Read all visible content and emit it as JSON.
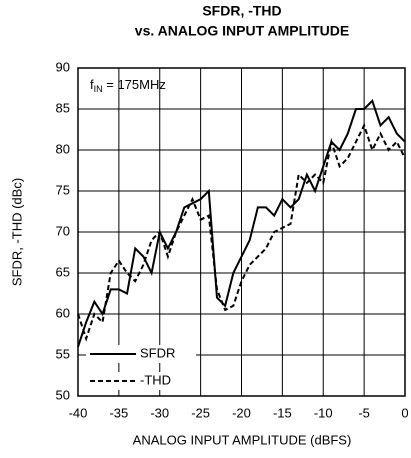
{
  "chart_data": {
    "type": "line",
    "title": [
      "SFDR, -THD",
      "vs. ANALOG INPUT AMPLITUDE"
    ],
    "annotation": {
      "base": "f",
      "subscript": "IN",
      "text": " = 175MHz"
    },
    "x_label": "ANALOG INPUT AMPLITUDE (dBFS)",
    "y_label": "SFDR, -THD (dBc)",
    "x": [
      -40,
      -39,
      -38,
      -37,
      -36,
      -35,
      -34,
      -33,
      -32,
      -31,
      -30,
      -29,
      -28,
      -27,
      -26,
      -25,
      -24,
      -23,
      -22,
      -21,
      -20,
      -19,
      -18,
      -17,
      -16,
      -15,
      -14,
      -13,
      -12,
      -11,
      -10,
      -9,
      -8,
      -7,
      -6,
      -5,
      -4,
      -3,
      -2,
      -1,
      0
    ],
    "series": [
      {
        "name": "SFDR",
        "color": "#000000",
        "dash": "solid",
        "values": [
          56,
          59,
          61.5,
          60,
          63,
          63,
          62.5,
          68,
          67,
          65,
          70,
          68,
          70,
          73,
          73.5,
          74,
          75,
          62,
          61,
          65,
          67,
          69,
          73,
          73,
          72,
          74,
          73,
          74,
          77,
          75,
          78,
          81,
          80,
          82,
          85,
          85,
          86,
          83,
          84,
          82,
          81
        ]
      },
      {
        "name": "-THD",
        "color": "#000000",
        "dash": "dashed",
        "values": [
          60,
          57,
          60,
          59,
          65,
          66.5,
          65,
          64,
          66,
          69,
          70,
          67,
          70,
          72,
          74,
          71.5,
          72,
          63,
          60.5,
          61,
          64,
          66,
          67,
          68,
          70,
          70.5,
          71,
          77,
          76,
          77,
          76,
          81,
          78,
          79,
          81,
          83,
          80,
          82,
          80,
          81,
          79
        ]
      }
    ],
    "xlim": [
      -40,
      0
    ],
    "xticks": [
      -40,
      -35,
      -30,
      -25,
      -20,
      -15,
      -10,
      -5,
      0
    ],
    "ylim": [
      50,
      90
    ],
    "yticks": [
      50,
      55,
      60,
      65,
      70,
      75,
      80,
      85,
      90
    ],
    "grid": true,
    "legend": "lower left"
  }
}
